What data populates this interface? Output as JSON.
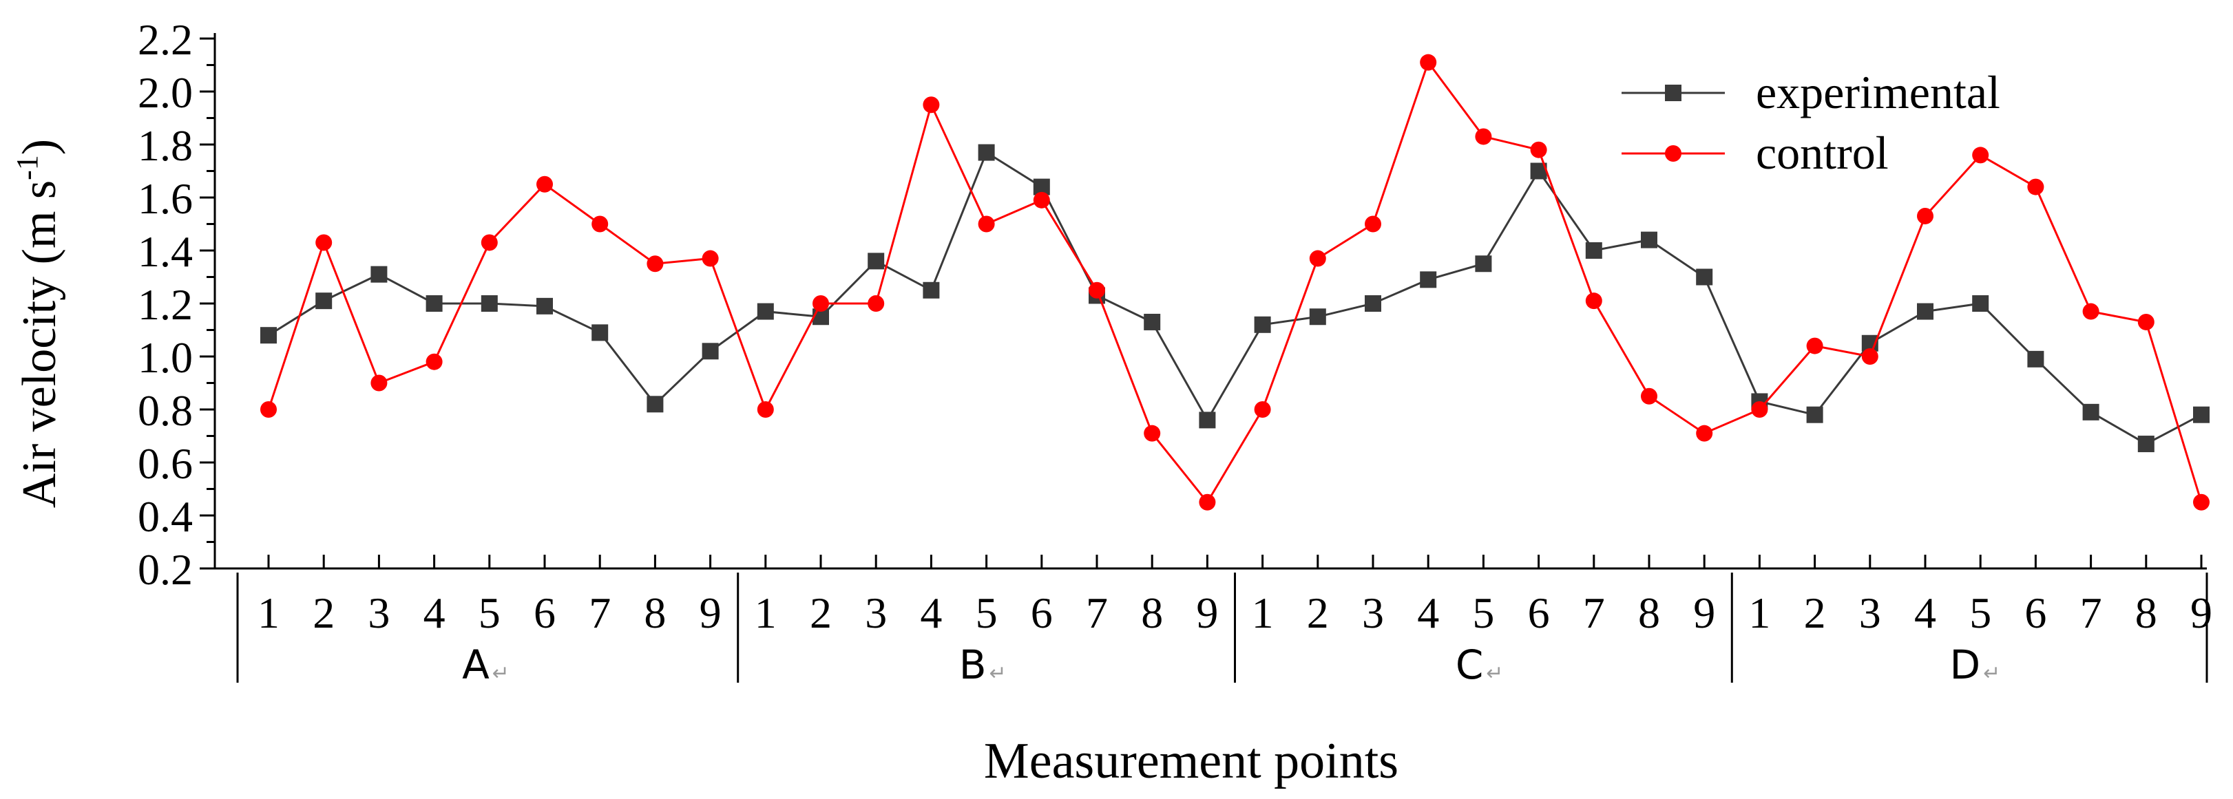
{
  "chart_data": {
    "type": "line",
    "ylabel": "Air velocity (m s",
    "ylabel_sup": "-1",
    "ylabel_close": ")",
    "xlabel": "Measurement points",
    "ylim": [
      0.2,
      2.2
    ],
    "yticks": [
      "0.2",
      "0.4",
      "0.6",
      "0.8",
      "1.0",
      "1.2",
      "1.4",
      "1.6",
      "1.8",
      "2.0",
      "2.2"
    ],
    "groups": [
      {
        "label": "A",
        "points": [
          "1",
          "2",
          "3",
          "4",
          "5",
          "6",
          "7",
          "8",
          "9"
        ]
      },
      {
        "label": "B",
        "points": [
          "1",
          "2",
          "3",
          "4",
          "5",
          "6",
          "7",
          "8",
          "9"
        ]
      },
      {
        "label": "C",
        "points": [
          "1",
          "2",
          "3",
          "4",
          "5",
          "6",
          "7",
          "8",
          "9"
        ]
      },
      {
        "label": "D",
        "points": [
          "1",
          "2",
          "3",
          "4",
          "5",
          "6",
          "7",
          "8",
          "9"
        ]
      }
    ],
    "group_mark": "↵",
    "legend_position": "top-right",
    "series": [
      {
        "name": "experimental",
        "color": "#3a3a3a",
        "marker": "square",
        "values": [
          1.08,
          1.21,
          1.31,
          1.2,
          1.2,
          1.19,
          1.09,
          0.82,
          1.02,
          1.17,
          1.15,
          1.36,
          1.25,
          1.77,
          1.64,
          1.23,
          1.13,
          0.76,
          1.12,
          1.15,
          1.2,
          1.29,
          1.35,
          1.7,
          1.4,
          1.44,
          1.3,
          0.83,
          0.78,
          1.05,
          1.17,
          1.2,
          0.99,
          0.79,
          0.67,
          0.78
        ]
      },
      {
        "name": "control",
        "color": "#ff0000",
        "marker": "circle",
        "values": [
          0.8,
          1.43,
          0.9,
          0.98,
          1.43,
          1.65,
          1.5,
          1.35,
          1.37,
          0.8,
          1.2,
          1.2,
          1.95,
          1.5,
          1.59,
          1.25,
          0.71,
          0.45,
          0.8,
          1.37,
          1.5,
          2.11,
          1.83,
          1.78,
          1.21,
          0.85,
          0.71,
          0.8,
          1.04,
          1.0,
          1.53,
          1.76,
          1.64,
          1.17,
          1.13,
          0.45
        ]
      }
    ]
  }
}
